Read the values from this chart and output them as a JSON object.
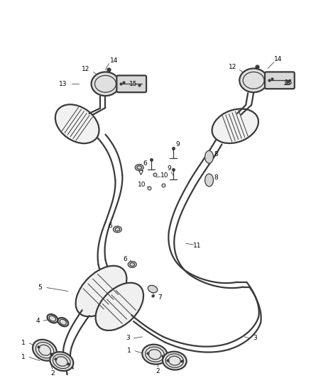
{
  "bg_color": "#ffffff",
  "line_color": "#3a3a3a",
  "label_color": "#000000",
  "fig_width": 4.38,
  "fig_height": 5.33,
  "dpi": 100,
  "lw_pipe": 1.6,
  "lw_thin": 0.9,
  "lw_leader": 0.55,
  "font_size": 6.5
}
